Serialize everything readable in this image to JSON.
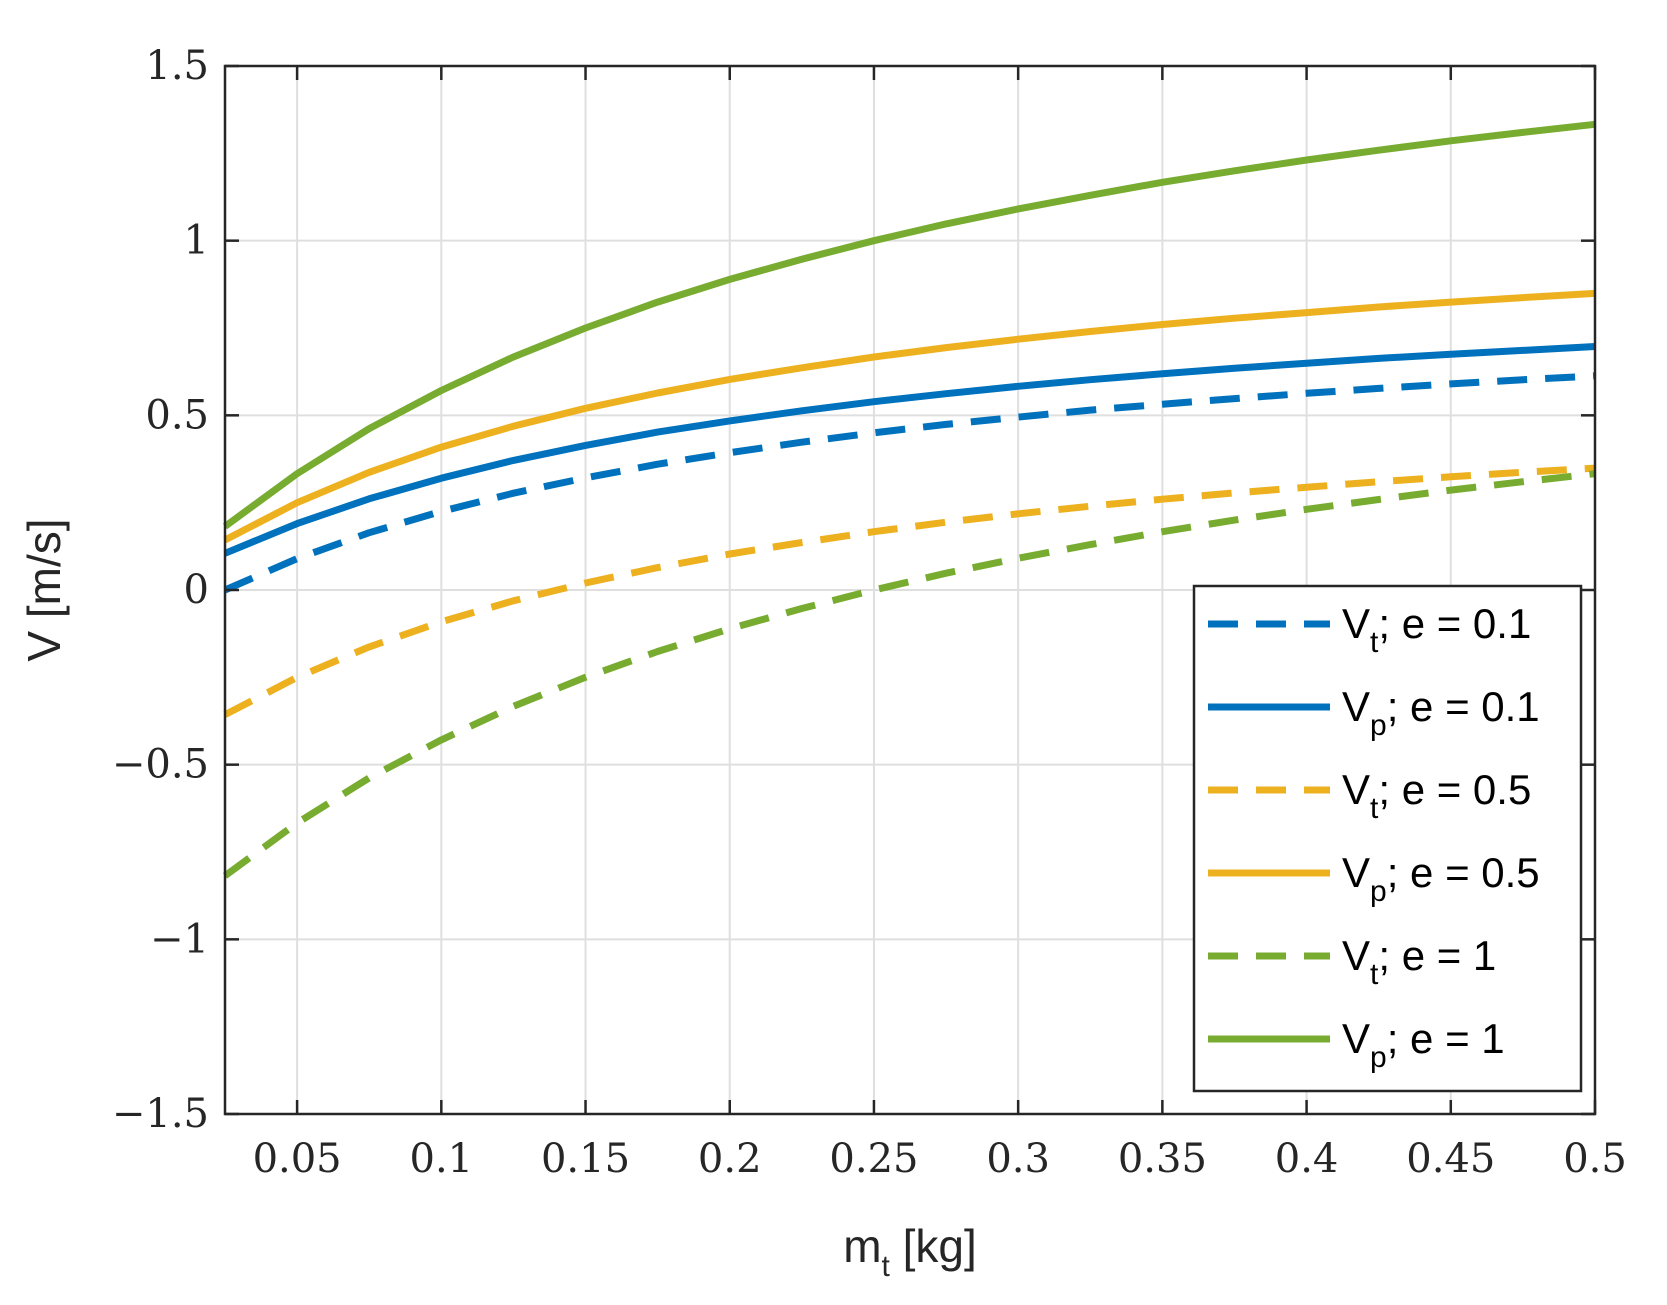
{
  "chart_data": {
    "type": "line",
    "title": "",
    "xlabel": {
      "main": "m",
      "sub": "t",
      "unit": " [kg]"
    },
    "ylabel": "V [m/s]",
    "xlim": [
      0.025,
      0.5
    ],
    "ylim": [
      -1.5,
      1.5
    ],
    "grid": true,
    "legend_position": "bottom-right",
    "xticks": [
      0.05,
      0.1,
      0.15,
      0.2,
      0.25,
      0.3,
      0.35,
      0.4,
      0.45,
      0.5
    ],
    "xtick_labels": [
      "0.05",
      "0.1",
      "0.15",
      "0.2",
      "0.25",
      "0.3",
      "0.35",
      "0.4",
      "0.45",
      "0.5"
    ],
    "yticks": [
      -1.5,
      -1,
      -0.5,
      0,
      0.5,
      1,
      1.5
    ],
    "ytick_labels": [
      "−1.5",
      "−1",
      "−0.5",
      "0",
      "0.5",
      "1",
      "1.5"
    ],
    "x": [
      0.025,
      0.05,
      0.075,
      0.1,
      0.125,
      0.15,
      0.175,
      0.2,
      0.225,
      0.25,
      0.275,
      0.3,
      0.325,
      0.35,
      0.375,
      0.4,
      0.425,
      0.45,
      0.475,
      0.5
    ],
    "series": [
      {
        "name": "V_t; e = 0.1",
        "legend": {
          "main": "V",
          "sub": "t",
          "rest": "; e = 0.1"
        },
        "color": "#0072BD",
        "dashed": true,
        "values": [
          0.0,
          0.09,
          0.164,
          0.225,
          0.277,
          0.321,
          0.36,
          0.393,
          0.423,
          0.45,
          0.474,
          0.495,
          0.515,
          0.532,
          0.548,
          0.563,
          0.577,
          0.59,
          0.602,
          0.613
        ]
      },
      {
        "name": "V_p; e = 0.1",
        "legend": {
          "main": "V",
          "sub": "p",
          "rest": "; e = 0.1"
        },
        "color": "#0072BD",
        "dashed": false,
        "values": [
          0.105,
          0.19,
          0.261,
          0.32,
          0.371,
          0.414,
          0.452,
          0.484,
          0.513,
          0.539,
          0.562,
          0.583,
          0.602,
          0.619,
          0.635,
          0.649,
          0.663,
          0.675,
          0.686,
          0.697
        ]
      },
      {
        "name": "V_t; e = 0.5",
        "legend": {
          "main": "V",
          "sub": "t",
          "rest": "; e = 0.5"
        },
        "color": "#EDB120",
        "dashed": true,
        "values": [
          -0.357,
          -0.25,
          -0.163,
          -0.091,
          -0.031,
          0.02,
          0.064,
          0.103,
          0.136,
          0.167,
          0.194,
          0.218,
          0.24,
          0.26,
          0.278,
          0.294,
          0.31,
          0.324,
          0.337,
          0.349
        ]
      },
      {
        "name": "V_p; e = 0.5",
        "legend": {
          "main": "V",
          "sub": "p",
          "rest": "; e = 0.5"
        },
        "color": "#EDB120",
        "dashed": false,
        "values": [
          0.143,
          0.25,
          0.337,
          0.409,
          0.469,
          0.52,
          0.564,
          0.603,
          0.636,
          0.667,
          0.694,
          0.718,
          0.74,
          0.76,
          0.778,
          0.794,
          0.81,
          0.824,
          0.837,
          0.849
        ]
      },
      {
        "name": "V_t; e = 1",
        "legend": {
          "main": "V",
          "sub": "t",
          "rest": "; e = 1"
        },
        "color": "#77AC30",
        "dashed": true,
        "values": [
          -0.818,
          -0.667,
          -0.538,
          -0.429,
          -0.333,
          -0.25,
          -0.176,
          -0.111,
          -0.053,
          0.0,
          0.048,
          0.091,
          0.13,
          0.167,
          0.2,
          0.231,
          0.259,
          0.286,
          0.31,
          0.333
        ]
      },
      {
        "name": "V_p; e = 1",
        "legend": {
          "main": "V",
          "sub": "p",
          "rest": "; e = 1"
        },
        "color": "#77AC30",
        "dashed": false,
        "values": [
          0.182,
          0.333,
          0.462,
          0.571,
          0.667,
          0.75,
          0.824,
          0.889,
          0.947,
          1.0,
          1.048,
          1.091,
          1.13,
          1.167,
          1.2,
          1.231,
          1.259,
          1.286,
          1.31,
          1.333
        ]
      }
    ]
  }
}
